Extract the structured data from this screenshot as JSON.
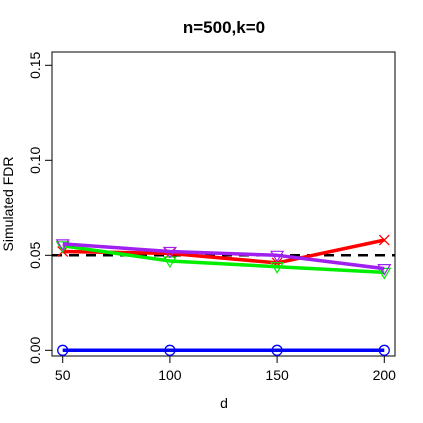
{
  "chart_data": {
    "type": "line",
    "title": "n=500,k=0",
    "xlabel": "d",
    "ylabel": "Simulated FDR",
    "x": [
      50,
      100,
      150,
      200
    ],
    "xticks": [
      "50",
      "100",
      "150",
      "200"
    ],
    "yticks": [
      "0.00",
      "0.05",
      "0.10",
      "0.15"
    ],
    "xlim": [
      45,
      205
    ],
    "ylim": [
      -0.003,
      0.157
    ],
    "grid": false,
    "reference_line": {
      "y": 0.05,
      "style": "dashed",
      "color": "#000000"
    },
    "series": [
      {
        "color": "#ff0000",
        "marker": "x",
        "values": [
          0.052,
          0.051,
          0.046,
          0.058
        ]
      },
      {
        "color": "#00ee00",
        "marker": "triangle-down",
        "values": [
          0.055,
          0.047,
          0.044,
          0.041
        ]
      },
      {
        "color": "#a020f0",
        "marker": "triangle-down",
        "values": [
          0.056,
          0.052,
          0.05,
          0.043
        ]
      },
      {
        "color": "#0000ff",
        "marker": "circle",
        "values": [
          0.0,
          0.0,
          0.0,
          0.0
        ]
      }
    ]
  }
}
